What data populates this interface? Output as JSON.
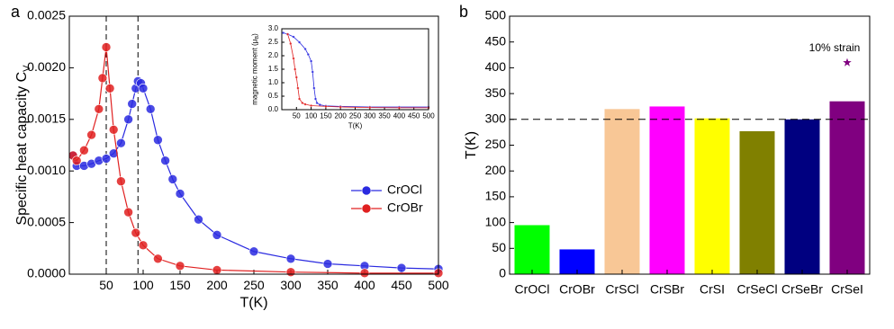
{
  "chart_data": [
    {
      "type": "line",
      "panel_label": "a",
      "xlabel": "T(K)",
      "ylabel": "Specific heat capacity C",
      "ylabel_sub": "V",
      "xlim": [
        0,
        500
      ],
      "xticks": [
        50,
        100,
        150,
        200,
        250,
        300,
        350,
        400,
        450,
        500
      ],
      "ylim": [
        0,
        0.0025
      ],
      "yticks": [
        {
          "value": 0,
          "label": "0.0000"
        },
        {
          "value": 0.0005,
          "label": "0.0005"
        },
        {
          "value": 0.001,
          "label": "0.0010"
        },
        {
          "value": 0.0015,
          "label": "0.0015"
        },
        {
          "value": 0.002,
          "label": "0.0020"
        },
        {
          "value": 0.0025,
          "label": "0.0025"
        }
      ],
      "vlines": [
        50,
        93
      ],
      "legend": "right",
      "markers": true,
      "series": [
        {
          "name": "CrOCl",
          "color": "#2a2ae0",
          "x": [
            5,
            10,
            20,
            30,
            40,
            50,
            60,
            70,
            80,
            85,
            90,
            93,
            97,
            100,
            110,
            120,
            130,
            140,
            150,
            175,
            200,
            250,
            300,
            350,
            400,
            450,
            500
          ],
          "values": [
            0.00115,
            0.00105,
            0.00105,
            0.00107,
            0.0011,
            0.00112,
            0.00117,
            0.00127,
            0.0015,
            0.00165,
            0.0018,
            0.00187,
            0.00185,
            0.0018,
            0.0016,
            0.0013,
            0.0011,
            0.00092,
            0.00078,
            0.00053,
            0.00038,
            0.00022,
            0.00015,
            0.0001,
            8e-05,
            6e-05,
            5e-05
          ]
        },
        {
          "name": "CrOBr",
          "color": "#e02020",
          "x": [
            5,
            10,
            20,
            30,
            40,
            45,
            50,
            55,
            60,
            70,
            80,
            90,
            100,
            120,
            150,
            200,
            300,
            400,
            500
          ],
          "values": [
            0.00115,
            0.0011,
            0.0012,
            0.00135,
            0.0016,
            0.0019,
            0.0022,
            0.0018,
            0.0014,
            0.0009,
            0.0006,
            0.0004,
            0.00028,
            0.00015,
            8e-05,
            4e-05,
            2e-05,
            1e-05,
            1e-05
          ]
        }
      ]
    },
    {
      "type": "line",
      "xlabel": "T(K)",
      "ylabel": "magnetic moment (μ",
      "ylabel_sub": "B",
      "ylabel_tail": ")",
      "xlim": [
        0,
        500
      ],
      "xticks": [
        50,
        100,
        150,
        200,
        250,
        300,
        350,
        400,
        450,
        500
      ],
      "ylim": [
        0,
        3
      ],
      "yticks": [
        {
          "value": 0,
          "label": "0.0"
        },
        0.5,
        {
          "value": 1,
          "label": "1.0"
        },
        1.5,
        {
          "value": 2,
          "label": "2.0"
        },
        2.5,
        {
          "value": 3,
          "label": "3.0"
        }
      ],
      "markers": true,
      "series": [
        {
          "name": "CrOCl",
          "color": "#2a2ae0",
          "x": [
            5,
            20,
            40,
            60,
            80,
            90,
            100,
            105,
            110,
            115,
            120,
            130,
            150,
            200,
            300,
            400,
            500
          ],
          "values": [
            2.85,
            2.8,
            2.7,
            2.5,
            2.25,
            2.05,
            1.8,
            1.4,
            0.8,
            0.4,
            0.25,
            0.18,
            0.14,
            0.12,
            0.1,
            0.1,
            0.1
          ]
        },
        {
          "name": "CrOBr",
          "color": "#e02020",
          "x": [
            20,
            30,
            40,
            45,
            50,
            55,
            60,
            70,
            80,
            100,
            150,
            200,
            300,
            400,
            500
          ],
          "values": [
            2.8,
            2.45,
            1.9,
            1.5,
            1.2,
            0.8,
            0.4,
            0.25,
            0.2,
            0.15,
            0.12,
            0.1,
            0.08,
            0.07,
            0.07
          ]
        }
      ]
    },
    {
      "type": "bar",
      "panel_label": "b",
      "ylabel": "T(K)",
      "categories": [
        "CrOCl",
        "CrOBr",
        "CrSCl",
        "CrSBr",
        "CrSI",
        "CrSeCl",
        "CrSeBr",
        "CrSeI"
      ],
      "values": [
        95,
        48,
        320,
        325,
        302,
        277,
        300,
        335
      ],
      "colors": [
        "#00ff00",
        "#0000ff",
        "#f8c796",
        "#ff00ff",
        "#ffff00",
        "#808000",
        "#000080",
        "#800080"
      ],
      "ylim": [
        0,
        500
      ],
      "yticks": [
        0,
        50,
        100,
        150,
        200,
        250,
        300,
        350,
        400,
        450,
        500
      ],
      "hline": 300,
      "strain_point": {
        "label": "10% strain",
        "color": "#800080",
        "values": [
          null,
          null,
          null,
          null,
          null,
          null,
          null,
          410
        ]
      }
    }
  ]
}
